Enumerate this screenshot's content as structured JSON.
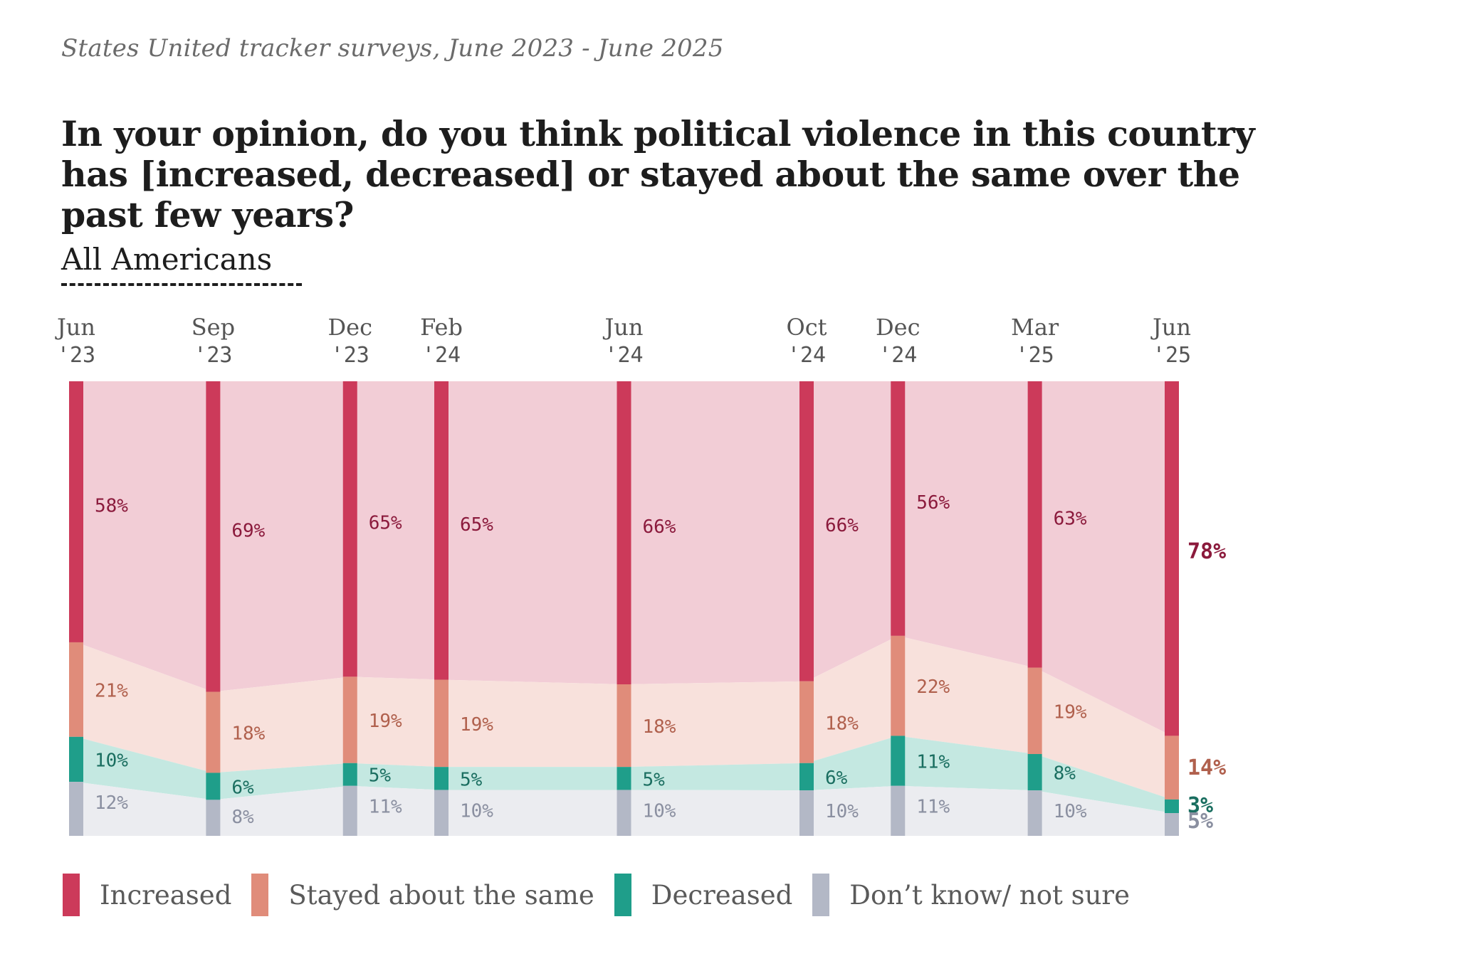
{
  "header": {
    "source": "States United tracker surveys, June 2023 - June 2025",
    "title": "In your opinion, do you think political violence in this country has [increased, decreased] or stayed about the same over the past few years?",
    "subtitle": "All Americans"
  },
  "colors": {
    "increased": "#cc3a5a",
    "increased_fill": "#f2cdd6",
    "same": "#e08c7a",
    "same_fill": "#f8e1dc",
    "decreased": "#1f9e8a",
    "decreased_fill": "#c4e8e1",
    "dontknow": "#b3b8c6",
    "dontknow_fill": "#ebecf0",
    "label_increased": "#8b1a3c",
    "label_same": "#b0604d",
    "label_decreased": "#1a6e60",
    "label_dontknow": "#8a8fa0"
  },
  "legend": [
    {
      "label": "Increased",
      "color": "#cc3a5a"
    },
    {
      "label": "Stayed about the same",
      "color": "#e08c7a"
    },
    {
      "label": "Decreased",
      "color": "#1f9e8a"
    },
    {
      "label": "Don’t know/ not sure",
      "color": "#b3b8c6"
    }
  ],
  "chart_data": {
    "type": "area",
    "stacked": true,
    "percent": true,
    "x": [
      "2023-06",
      "2023-09",
      "2023-12",
      "2024-02",
      "2024-06",
      "2024-10",
      "2024-12",
      "2025-03",
      "2025-06"
    ],
    "tick_labels": [
      [
        "Jun",
        "'23"
      ],
      [
        "Sep",
        "'23"
      ],
      [
        "Dec",
        "'23"
      ],
      [
        "Feb",
        "'24"
      ],
      [
        "Jun",
        "'24"
      ],
      [
        "Oct",
        "'24"
      ],
      [
        "Dec",
        "'24"
      ],
      [
        "Mar",
        "'25"
      ],
      [
        "Jun",
        "'25"
      ]
    ],
    "series": [
      {
        "name": "Increased",
        "key": "increased",
        "values": [
          58,
          69,
          65,
          65,
          66,
          66,
          56,
          63,
          78
        ]
      },
      {
        "name": "Stayed about the same",
        "key": "same",
        "values": [
          21,
          18,
          19,
          19,
          18,
          18,
          22,
          19,
          14
        ]
      },
      {
        "name": "Decreased",
        "key": "decreased",
        "values": [
          10,
          6,
          5,
          5,
          5,
          6,
          11,
          8,
          3
        ]
      },
      {
        "name": "Don’t know/ not sure",
        "key": "dontknow",
        "values": [
          12,
          8,
          11,
          10,
          10,
          10,
          11,
          10,
          5
        ]
      }
    ],
    "ylim": [
      0,
      100
    ],
    "legend_position": "bottom-left"
  }
}
